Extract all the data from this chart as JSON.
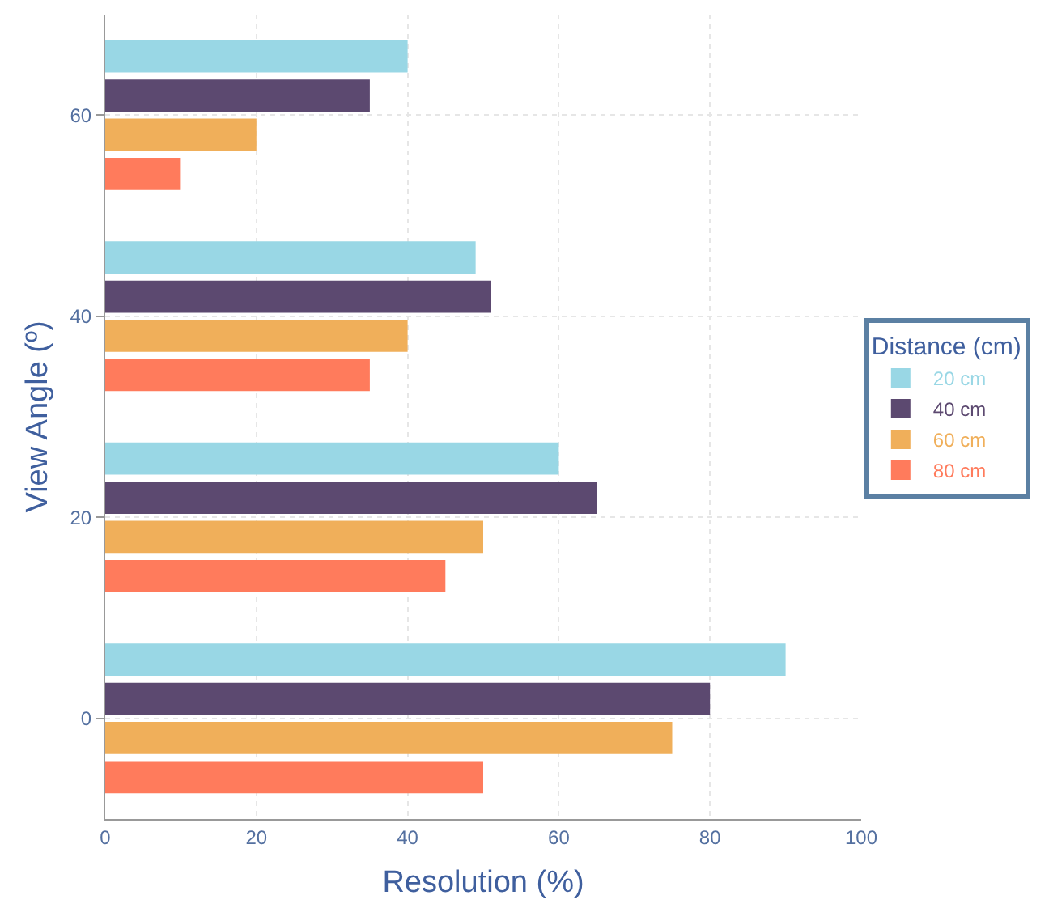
{
  "chart_data": {
    "type": "bar",
    "orientation": "horizontal",
    "xlabel": "Resolution (%)",
    "ylabel": "View Angle (º)",
    "legend_title": "Distance (cm)",
    "x": [
      0,
      20,
      40,
      60
    ],
    "series": [
      {
        "name": "20 cm",
        "color": "#99d7e5",
        "values": [
          90,
          60,
          49,
          40
        ]
      },
      {
        "name": "40 cm",
        "color": "#5c4970",
        "values": [
          80,
          65,
          51,
          35
        ]
      },
      {
        "name": "60 cm",
        "color": "#f0af5a",
        "values": [
          75,
          50,
          40,
          20
        ]
      },
      {
        "name": "80 cm",
        "color": "#ff7b5c",
        "values": [
          50,
          45,
          35,
          10
        ]
      }
    ],
    "xlim": [
      0,
      100
    ],
    "xticks": [
      0,
      20,
      40,
      60,
      80,
      100
    ],
    "ylim": [
      -10,
      70
    ],
    "yticks": [
      0,
      20,
      40,
      60
    ],
    "grid": true,
    "legend": "right"
  }
}
